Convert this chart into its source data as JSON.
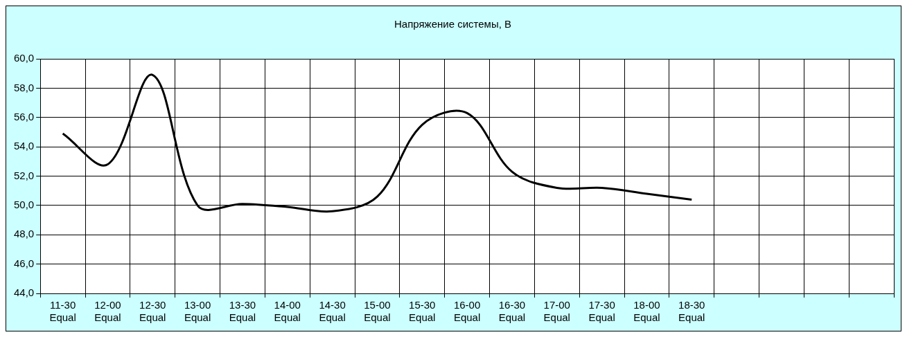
{
  "chart_data": {
    "type": "line",
    "title": "Напряжение системы, В",
    "categories": [
      "11-30 Equal",
      "12-00 Equal",
      "12-30 Equal",
      "13-00 Equal",
      "13-30 Equal",
      "14-00 Equal",
      "14-30 Equal",
      "15-00 Equal",
      "15-30 Equal",
      "16-00 Equal",
      "16-30 Equal",
      "17-00 Equal",
      "17-30 Equal",
      "18-00 Equal",
      "18-30 Equal",
      null,
      null,
      null,
      null
    ],
    "series": [
      {
        "color": "#000000",
        "values": [
          54.9,
          52.8,
          58.9,
          50.0,
          50.1,
          49.9,
          49.6,
          50.6,
          55.5,
          56.3,
          52.3,
          51.2,
          51.2,
          50.8,
          50.4,
          null,
          null,
          null,
          null
        ]
      }
    ],
    "ylim": [
      44,
      60
    ],
    "yticks": [
      {
        "value": 44,
        "label": "44,0"
      },
      {
        "value": 46,
        "label": "46,0"
      },
      {
        "value": 48,
        "label": "48,0"
      },
      {
        "value": 50,
        "label": "50,0"
      },
      {
        "value": 52,
        "label": "52,0"
      },
      {
        "value": 54,
        "label": "54,0"
      },
      {
        "value": 56,
        "label": "56,0"
      },
      {
        "value": 58,
        "label": "58,0"
      },
      {
        "value": 60,
        "label": "60,0"
      }
    ],
    "grid": true,
    "legend": false,
    "marker": "none",
    "line_style": "solid"
  }
}
